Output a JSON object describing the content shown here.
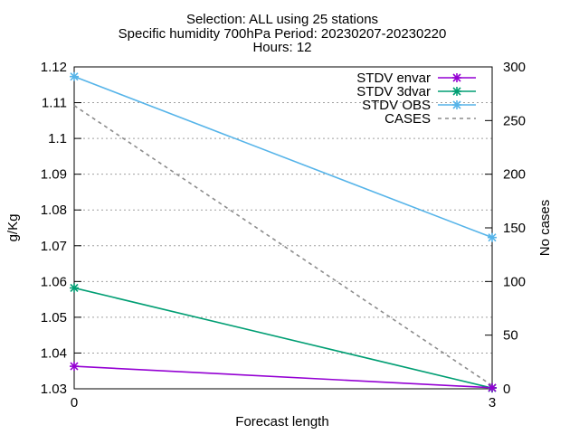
{
  "chart_data": {
    "type": "line",
    "title_lines": [
      "Selection: ALL using    25 stations",
      "Specific humidity 700hPa   Period: 20230207-20230220",
      "Hours: 12"
    ],
    "xlabel": "Forecast length",
    "ylabel": "g/Kg",
    "y2label": "No cases",
    "x": [
      0,
      3
    ],
    "xlim": [
      0,
      3
    ],
    "xticks": [
      "0",
      "3"
    ],
    "ylim": [
      1.03,
      1.12
    ],
    "yticks": [
      "1.03",
      "1.04",
      "1.05",
      "1.06",
      "1.07",
      "1.08",
      "1.09",
      "1.1",
      "1.11",
      "1.12"
    ],
    "y2lim": [
      0,
      300
    ],
    "y2ticks": [
      "0",
      "50",
      "100",
      "150",
      "200",
      "250",
      "300"
    ],
    "grid": "horizontal dashed",
    "legend_position": "top-right",
    "series": [
      {
        "name": "STDV envar",
        "values": [
          1.0363,
          1.0303
        ],
        "color": "#9400d3",
        "axis": "y1",
        "style": "line-points"
      },
      {
        "name": "STDV 3dvar",
        "values": [
          1.0582,
          1.0302
        ],
        "color": "#009e73",
        "axis": "y1",
        "style": "line-points"
      },
      {
        "name": "STDV OBS",
        "values": [
          1.1173,
          1.0723
        ],
        "color": "#56b4e9",
        "axis": "y1",
        "style": "line-points"
      },
      {
        "name": "CASES",
        "values": [
          264,
          3
        ],
        "color": "#8c8c8c",
        "axis": "y2",
        "style": "dashed"
      }
    ]
  }
}
